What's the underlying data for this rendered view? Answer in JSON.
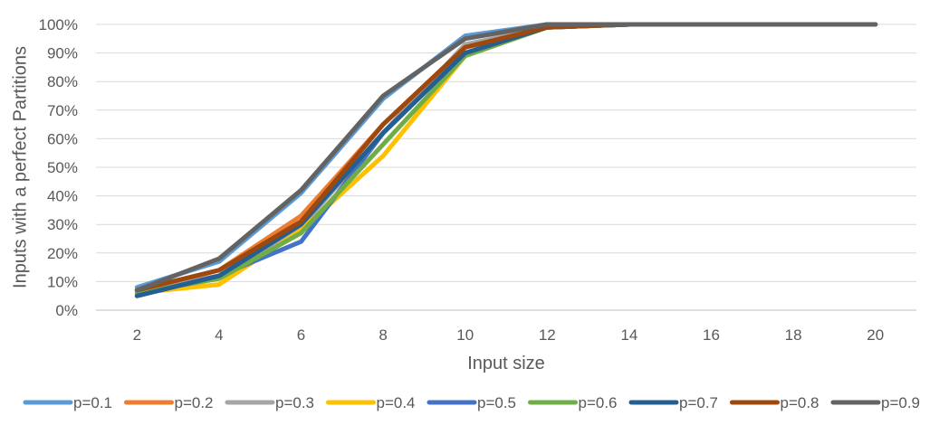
{
  "chart_data": {
    "type": "line",
    "title": "",
    "xlabel": "Input size",
    "ylabel": "Inputs with a perfect Partitions",
    "x": [
      2,
      4,
      6,
      8,
      10,
      12,
      14,
      16,
      18,
      20
    ],
    "x_tick_labels": [
      "2",
      "4",
      "6",
      "8",
      "10",
      "12",
      "14",
      "16",
      "18",
      "20"
    ],
    "y_tick_labels": [
      "0%",
      "10%",
      "20%",
      "30%",
      "40%",
      "50%",
      "60%",
      "70%",
      "80%",
      "90%",
      "100%"
    ],
    "ylim": [
      0,
      100
    ],
    "y_unit": "percent",
    "grid": true,
    "legend_position": "bottom",
    "series": [
      {
        "name": "p=0.1",
        "color": "#5B9BD5",
        "values": [
          8,
          17,
          41,
          74,
          96,
          100,
          100,
          100,
          100,
          100
        ]
      },
      {
        "name": "p=0.2",
        "color": "#ED7D31",
        "values": [
          7,
          14,
          33,
          65,
          92,
          99,
          100,
          100,
          100,
          100
        ]
      },
      {
        "name": "p=0.3",
        "color": "#A5A5A5",
        "values": [
          7,
          12,
          29,
          62,
          93,
          99,
          100,
          100,
          100,
          100
        ]
      },
      {
        "name": "p=0.4",
        "color": "#FFC000",
        "values": [
          6,
          9,
          28,
          54,
          89,
          99,
          100,
          100,
          100,
          100
        ]
      },
      {
        "name": "p=0.5",
        "color": "#4472C4",
        "values": [
          5,
          12,
          24,
          62,
          90,
          99,
          100,
          100,
          100,
          100
        ]
      },
      {
        "name": "p=0.6",
        "color": "#70AD47",
        "values": [
          6,
          11,
          27,
          58,
          89,
          99,
          100,
          100,
          100,
          100
        ]
      },
      {
        "name": "p=0.7",
        "color": "#255E91",
        "values": [
          5,
          12,
          30,
          62,
          90,
          99,
          100,
          100,
          100,
          100
        ]
      },
      {
        "name": "p=0.8",
        "color": "#9E480E",
        "values": [
          7,
          14,
          31,
          65,
          92,
          99,
          100,
          100,
          100,
          100
        ]
      },
      {
        "name": "p=0.9",
        "color": "#636363",
        "values": [
          7,
          18,
          42,
          75,
          95,
          100,
          100,
          100,
          100,
          100
        ]
      }
    ]
  }
}
